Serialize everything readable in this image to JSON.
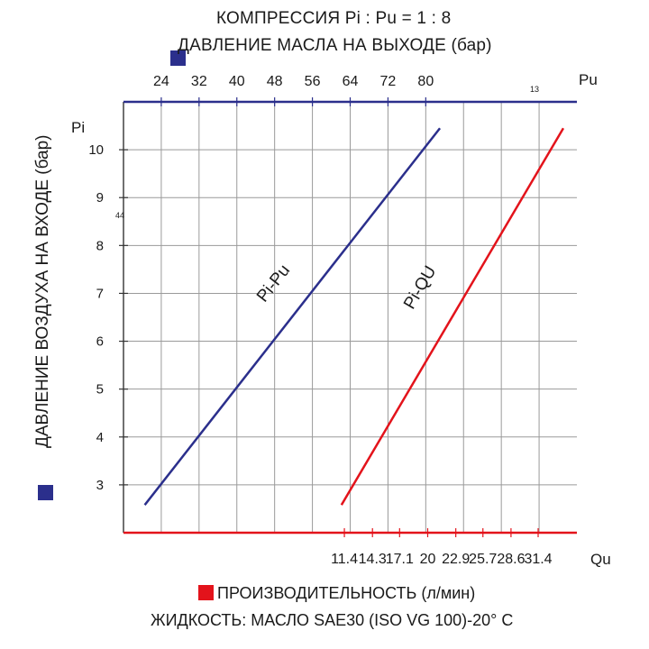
{
  "header": {
    "title": "КОМПРЕССИЯ Pi : Pu = 1 : 8",
    "top_axis_legend": "ДАВЛЕНИЕ МАСЛА НА ВЫХОДЕ (бар)"
  },
  "left_axis_legend": "ДАВЛЕНИЕ ВОЗДУХА НА ВХОДЕ (бар)",
  "footer": {
    "bottom_axis_legend": "ПРОИЗВОДИТЕЛЬНОСТЬ (л/мин)",
    "fluid_note": "ЖИДКОСТЬ:  МАСЛО SAE30 (ISO VG 100)-20° С"
  },
  "stray_marks": {
    "small_13": "13",
    "small_44": "44"
  },
  "colors": {
    "blue": "#2b2f8c",
    "red": "#e3131b",
    "grid": "#9a9a9a"
  },
  "chart_data": {
    "type": "line",
    "title": "КОМПРЕССИЯ Pi : Pu = 1 : 8",
    "grid": true,
    "y_axis": {
      "label": "Pi",
      "ticks": [
        3,
        4,
        5,
        6,
        7,
        8,
        9,
        10
      ],
      "range": [
        2.0,
        11.0
      ]
    },
    "top_axis": {
      "label": "Pu",
      "ticks": [
        24,
        32,
        40,
        48,
        56,
        64,
        72,
        80
      ],
      "range": [
        16,
        112
      ]
    },
    "bottom_axis": {
      "label": "Qu",
      "tick_labels": [
        "11.4",
        "14.3",
        "17.1",
        "20",
        "22.9",
        "25.7",
        "28.6",
        "31.4"
      ],
      "ticks": [
        11.4,
        14.3,
        17.1,
        20,
        22.9,
        25.7,
        28.6,
        31.4
      ],
      "range": [
        -11.4,
        35.4
      ]
    },
    "series": [
      {
        "name": "Pi-Pu",
        "axis": "top",
        "color": "#2b2f8c",
        "points": [
          [
            20.5,
            2.58
          ],
          [
            83.0,
            10.45
          ]
        ]
      },
      {
        "name": "Pi-QU",
        "axis": "bottom",
        "color": "#e3131b",
        "points": [
          [
            11.1,
            2.58
          ],
          [
            34.0,
            10.45
          ]
        ]
      }
    ]
  }
}
